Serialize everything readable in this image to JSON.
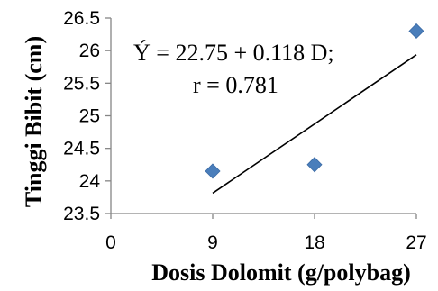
{
  "chart_data": {
    "type": "scatter",
    "title": "",
    "xlabel": "Dosis Dolomit (g/polybag)",
    "ylabel": "Tinggi  Bibit (cm)",
    "x_ticks": [
      "0",
      "9",
      "18",
      "27"
    ],
    "y_ticks": [
      "23.5",
      "24",
      "24.5",
      "25",
      "25.5",
      "26",
      "26.5"
    ],
    "xlim": [
      0,
      27
    ],
    "ylim": [
      23.5,
      26.5
    ],
    "grid": false,
    "legend": "none",
    "series": [
      {
        "x": [
          9,
          18,
          27
        ],
        "y": [
          24.15,
          24.25,
          26.3
        ],
        "marker": "diamond",
        "color": "#4a7ebb"
      }
    ],
    "trendline": {
      "intercept": 22.75,
      "slope": 0.118,
      "x_range": [
        9,
        27
      ]
    },
    "annotations": [
      "Ý = 22.75 + 0.118 D;",
      "r = 0.781"
    ]
  }
}
